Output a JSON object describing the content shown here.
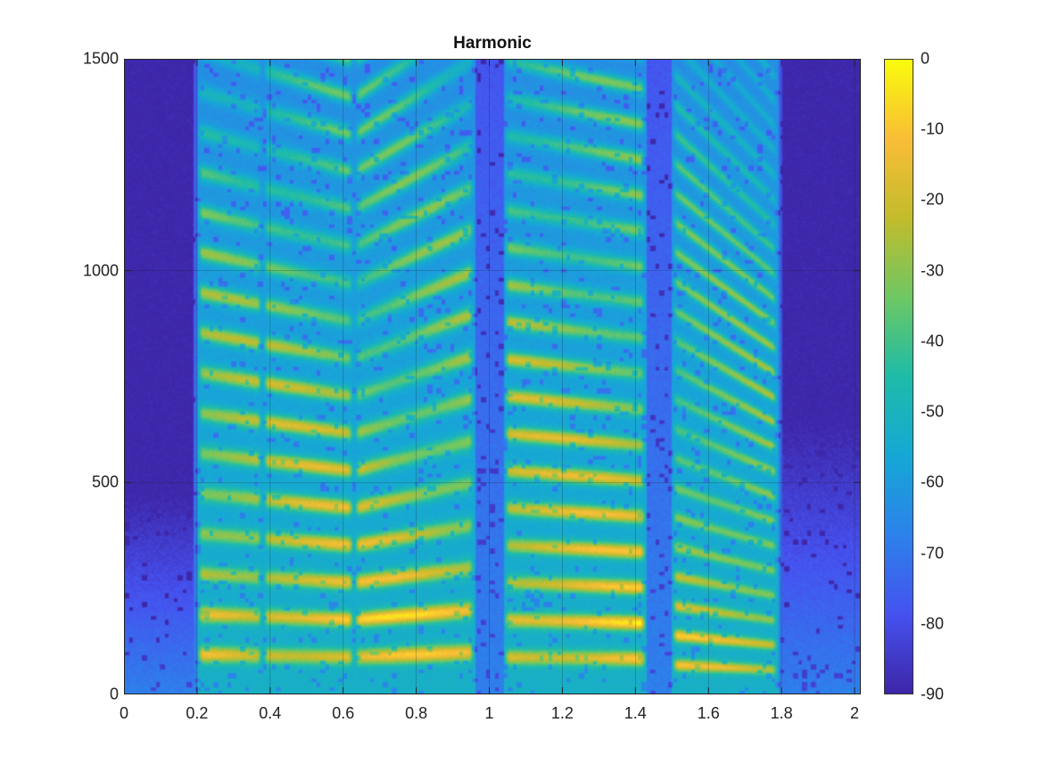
{
  "chart_data": {
    "type": "heatmap",
    "title": "Harmonic",
    "xlabel": "",
    "ylabel": "",
    "xlim": [
      0,
      2.017
    ],
    "ylim": [
      0,
      1500
    ],
    "clim": [
      -90,
      0
    ],
    "colormap": "parula",
    "grid": true,
    "x_ticks": [
      "0",
      "0.2",
      "0.4",
      "0.6",
      "0.8",
      "1",
      "1.2",
      "1.4",
      "1.6",
      "1.8",
      "2"
    ],
    "x_tick_values": [
      0,
      0.2,
      0.4,
      0.6,
      0.8,
      1,
      1.2,
      1.4,
      1.6,
      1.8,
      2
    ],
    "y_ticks": [
      "0",
      "500",
      "1000",
      "1500"
    ],
    "y_tick_values": [
      0,
      500,
      1000,
      1500
    ],
    "colorbar_ticks": [
      "0",
      "-10",
      "-20",
      "-30",
      "-40",
      "-50",
      "-60",
      "-70",
      "-80",
      "-90"
    ],
    "colorbar_tick_values": [
      0,
      -10,
      -20,
      -30,
      -40,
      -50,
      -60,
      -70,
      -80,
      -90
    ],
    "voiced_segments": [
      {
        "start": 0.2,
        "end": 0.38,
        "f0_start": 95,
        "f0_end": 92,
        "peak_db": -8
      },
      {
        "start": 0.38,
        "end": 0.63,
        "f0_start": 92,
        "f0_end": 88,
        "peak_db": -6
      },
      {
        "start": 0.63,
        "end": 0.96,
        "f0_start": 88,
        "f0_end": 100,
        "peak_db": -8
      },
      {
        "start": 1.04,
        "end": 1.43,
        "f0_start": 88,
        "f0_end": 84,
        "peak_db": -5
      },
      {
        "start": 1.5,
        "end": 1.79,
        "f0_start": 70,
        "f0_end": 58,
        "peak_db": -12
      }
    ]
  }
}
